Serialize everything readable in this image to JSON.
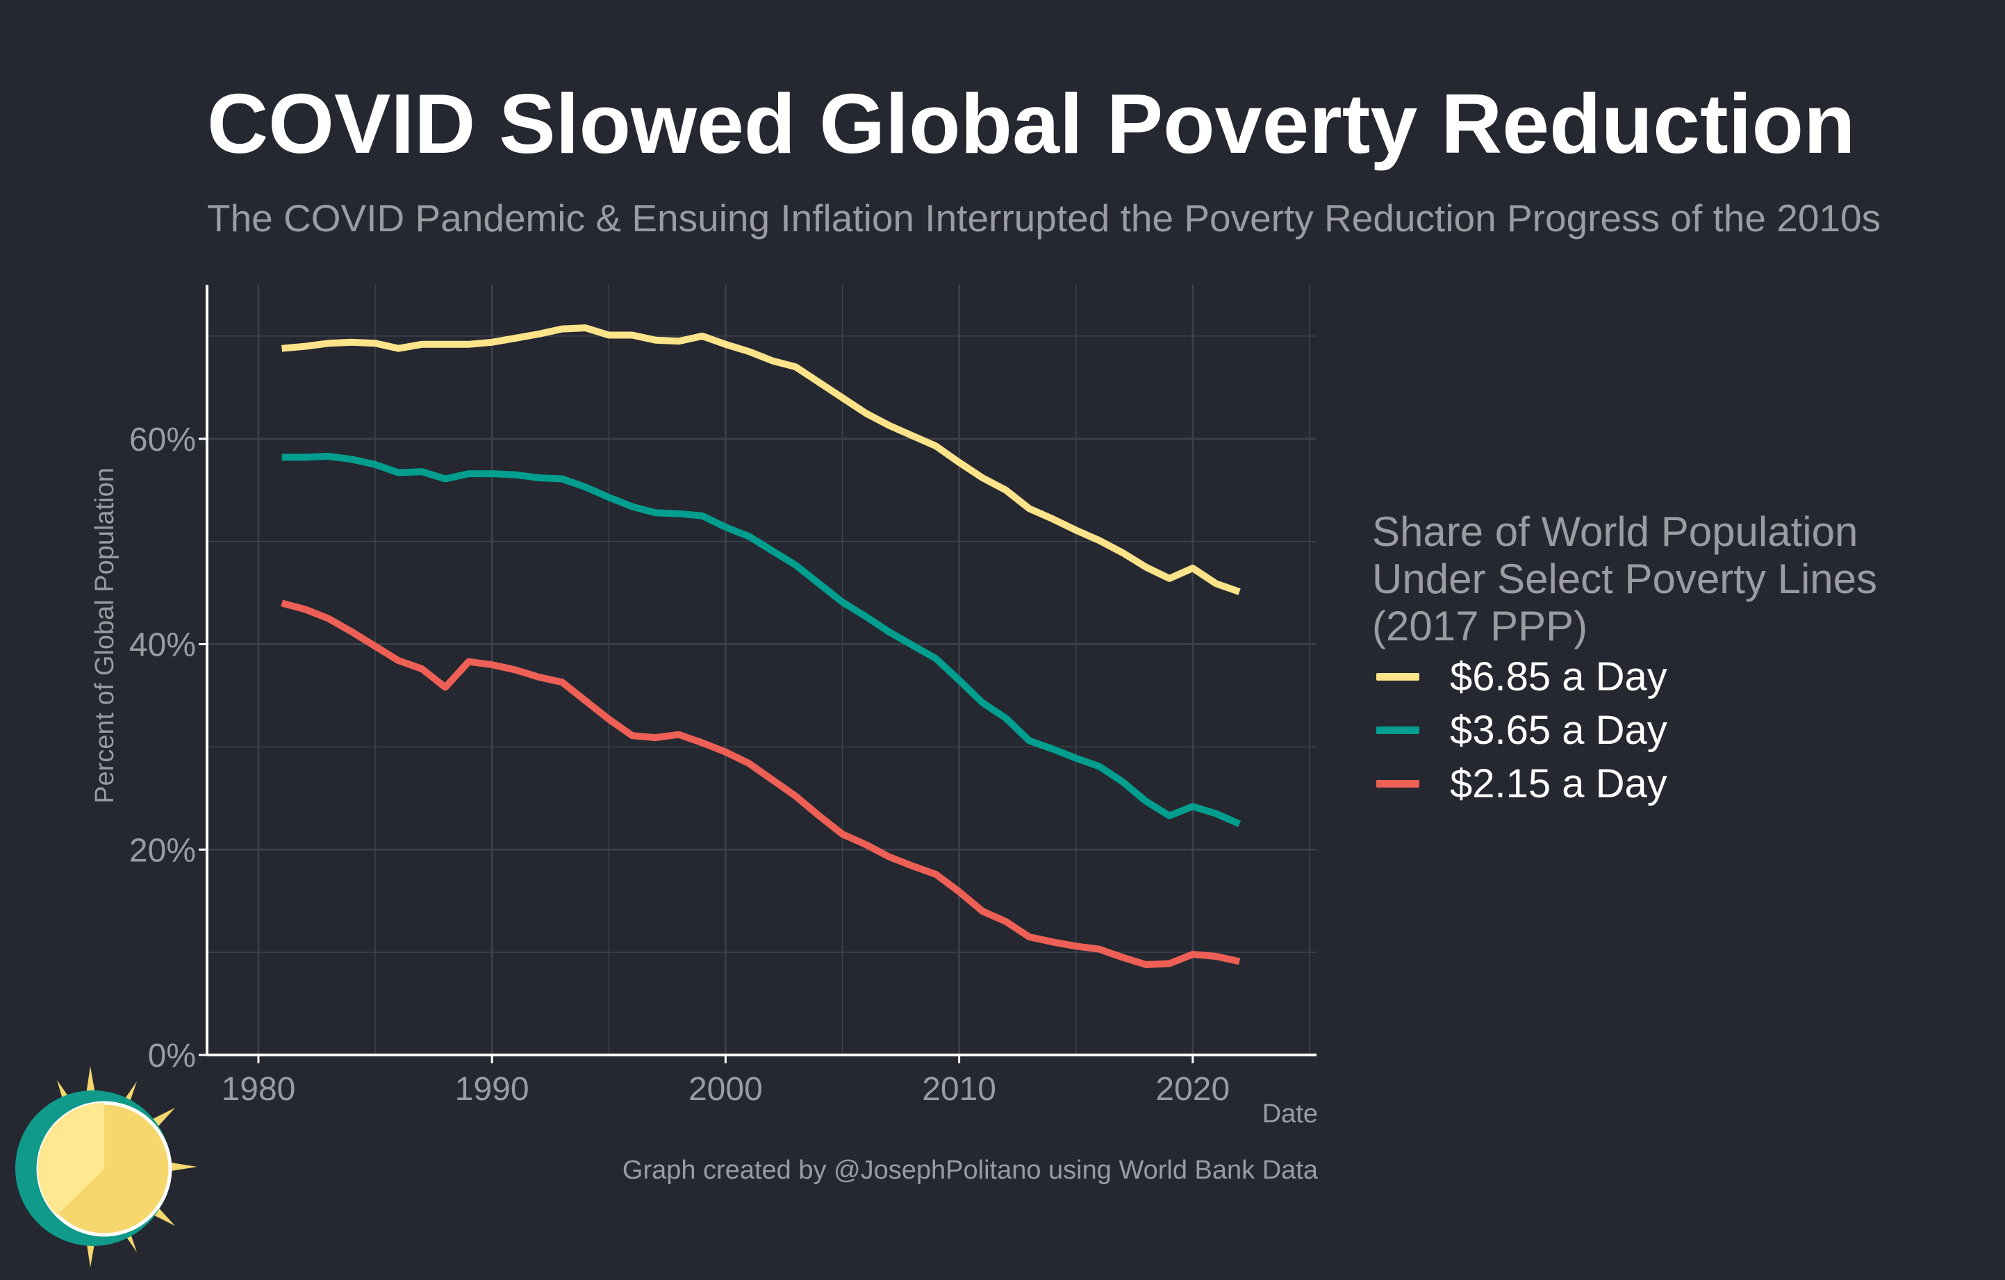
{
  "header": {
    "title": "COVID Slowed Global Poverty Reduction",
    "subtitle": "The COVID Pandemic & Ensuing Inflation Interrupted the Poverty Reduction Progress of the 2010s"
  },
  "caption": "Graph created by @JosephPolitano using World Bank Data",
  "logo_icon": "sun-icon",
  "colors": {
    "background": "#252830",
    "grid": "#3f424b",
    "axis": "#ffffff",
    "muted_text": "#9a9ca2"
  },
  "chart_data": {
    "type": "line",
    "title": "COVID Slowed Global Poverty Reduction",
    "subtitle": "The COVID Pandemic & Ensuing Inflation Interrupted the Poverty Reduction Progress of the 2010s",
    "xlabel": "Date",
    "ylabel": "Percent of Global Population",
    "xlim": [
      1977.8,
      2025.3
    ],
    "ylim": [
      0,
      75
    ],
    "x_ticks": [
      1980,
      1990,
      2000,
      2010,
      2020
    ],
    "x_tick_labels": [
      "1980",
      "1990",
      "2000",
      "2010",
      "2020"
    ],
    "y_ticks": [
      0,
      20,
      40,
      60
    ],
    "y_tick_labels": [
      "0%",
      "20%",
      "40%",
      "60%"
    ],
    "grid": true,
    "legend_title": "Share of World Population Under Select Poverty Lines (2017 PPP)",
    "legend_position": "right",
    "x": [
      1981,
      1982,
      1983,
      1984,
      1985,
      1986,
      1987,
      1988,
      1989,
      1990,
      1991,
      1992,
      1993,
      1994,
      1995,
      1996,
      1997,
      1998,
      1999,
      2000,
      2001,
      2002,
      2003,
      2004,
      2005,
      2006,
      2007,
      2008,
      2009,
      2010,
      2011,
      2012,
      2013,
      2014,
      2015,
      2016,
      2017,
      2018,
      2019,
      2020,
      2021,
      2022
    ],
    "series": [
      {
        "name": "$6.85 a Day",
        "color": "#fde38a",
        "values": [
          68.8,
          69.0,
          69.3,
          69.4,
          69.3,
          68.8,
          69.2,
          69.2,
          69.2,
          69.4,
          69.8,
          70.2,
          70.7,
          70.8,
          70.1,
          70.1,
          69.6,
          69.5,
          70.0,
          69.2,
          68.5,
          67.6,
          67.0,
          65.5,
          64.0,
          62.5,
          61.3,
          60.3,
          59.3,
          57.7,
          56.2,
          55.0,
          53.2,
          52.2,
          51.1,
          50.1,
          48.9,
          47.5,
          46.4,
          47.4,
          45.9,
          45.1
        ]
      },
      {
        "name": "$3.65 a Day",
        "color": "#009e8f",
        "values": [
          58.2,
          58.2,
          58.3,
          58.0,
          57.5,
          56.7,
          56.8,
          56.1,
          56.6,
          56.6,
          56.5,
          56.2,
          56.1,
          55.3,
          54.3,
          53.4,
          52.8,
          52.7,
          52.5,
          51.4,
          50.5,
          49.1,
          47.7,
          45.9,
          44.1,
          42.7,
          41.2,
          39.9,
          38.6,
          36.5,
          34.3,
          32.8,
          30.6,
          29.8,
          28.9,
          28.1,
          26.6,
          24.7,
          23.3,
          24.2,
          23.5,
          22.5
        ]
      },
      {
        "name": "$2.15 a Day",
        "color": "#ee6055",
        "values": [
          44.0,
          43.4,
          42.5,
          41.2,
          39.8,
          38.4,
          37.6,
          35.8,
          38.3,
          38.0,
          37.5,
          36.8,
          36.3,
          34.5,
          32.7,
          31.1,
          30.9,
          31.2,
          30.4,
          29.5,
          28.4,
          26.8,
          25.2,
          23.3,
          21.5,
          20.5,
          19.3,
          18.4,
          17.6,
          15.9,
          14.0,
          13.0,
          11.5,
          11.0,
          10.6,
          10.3,
          9.5,
          8.8,
          8.9,
          9.8,
          9.6,
          9.1
        ]
      }
    ]
  }
}
